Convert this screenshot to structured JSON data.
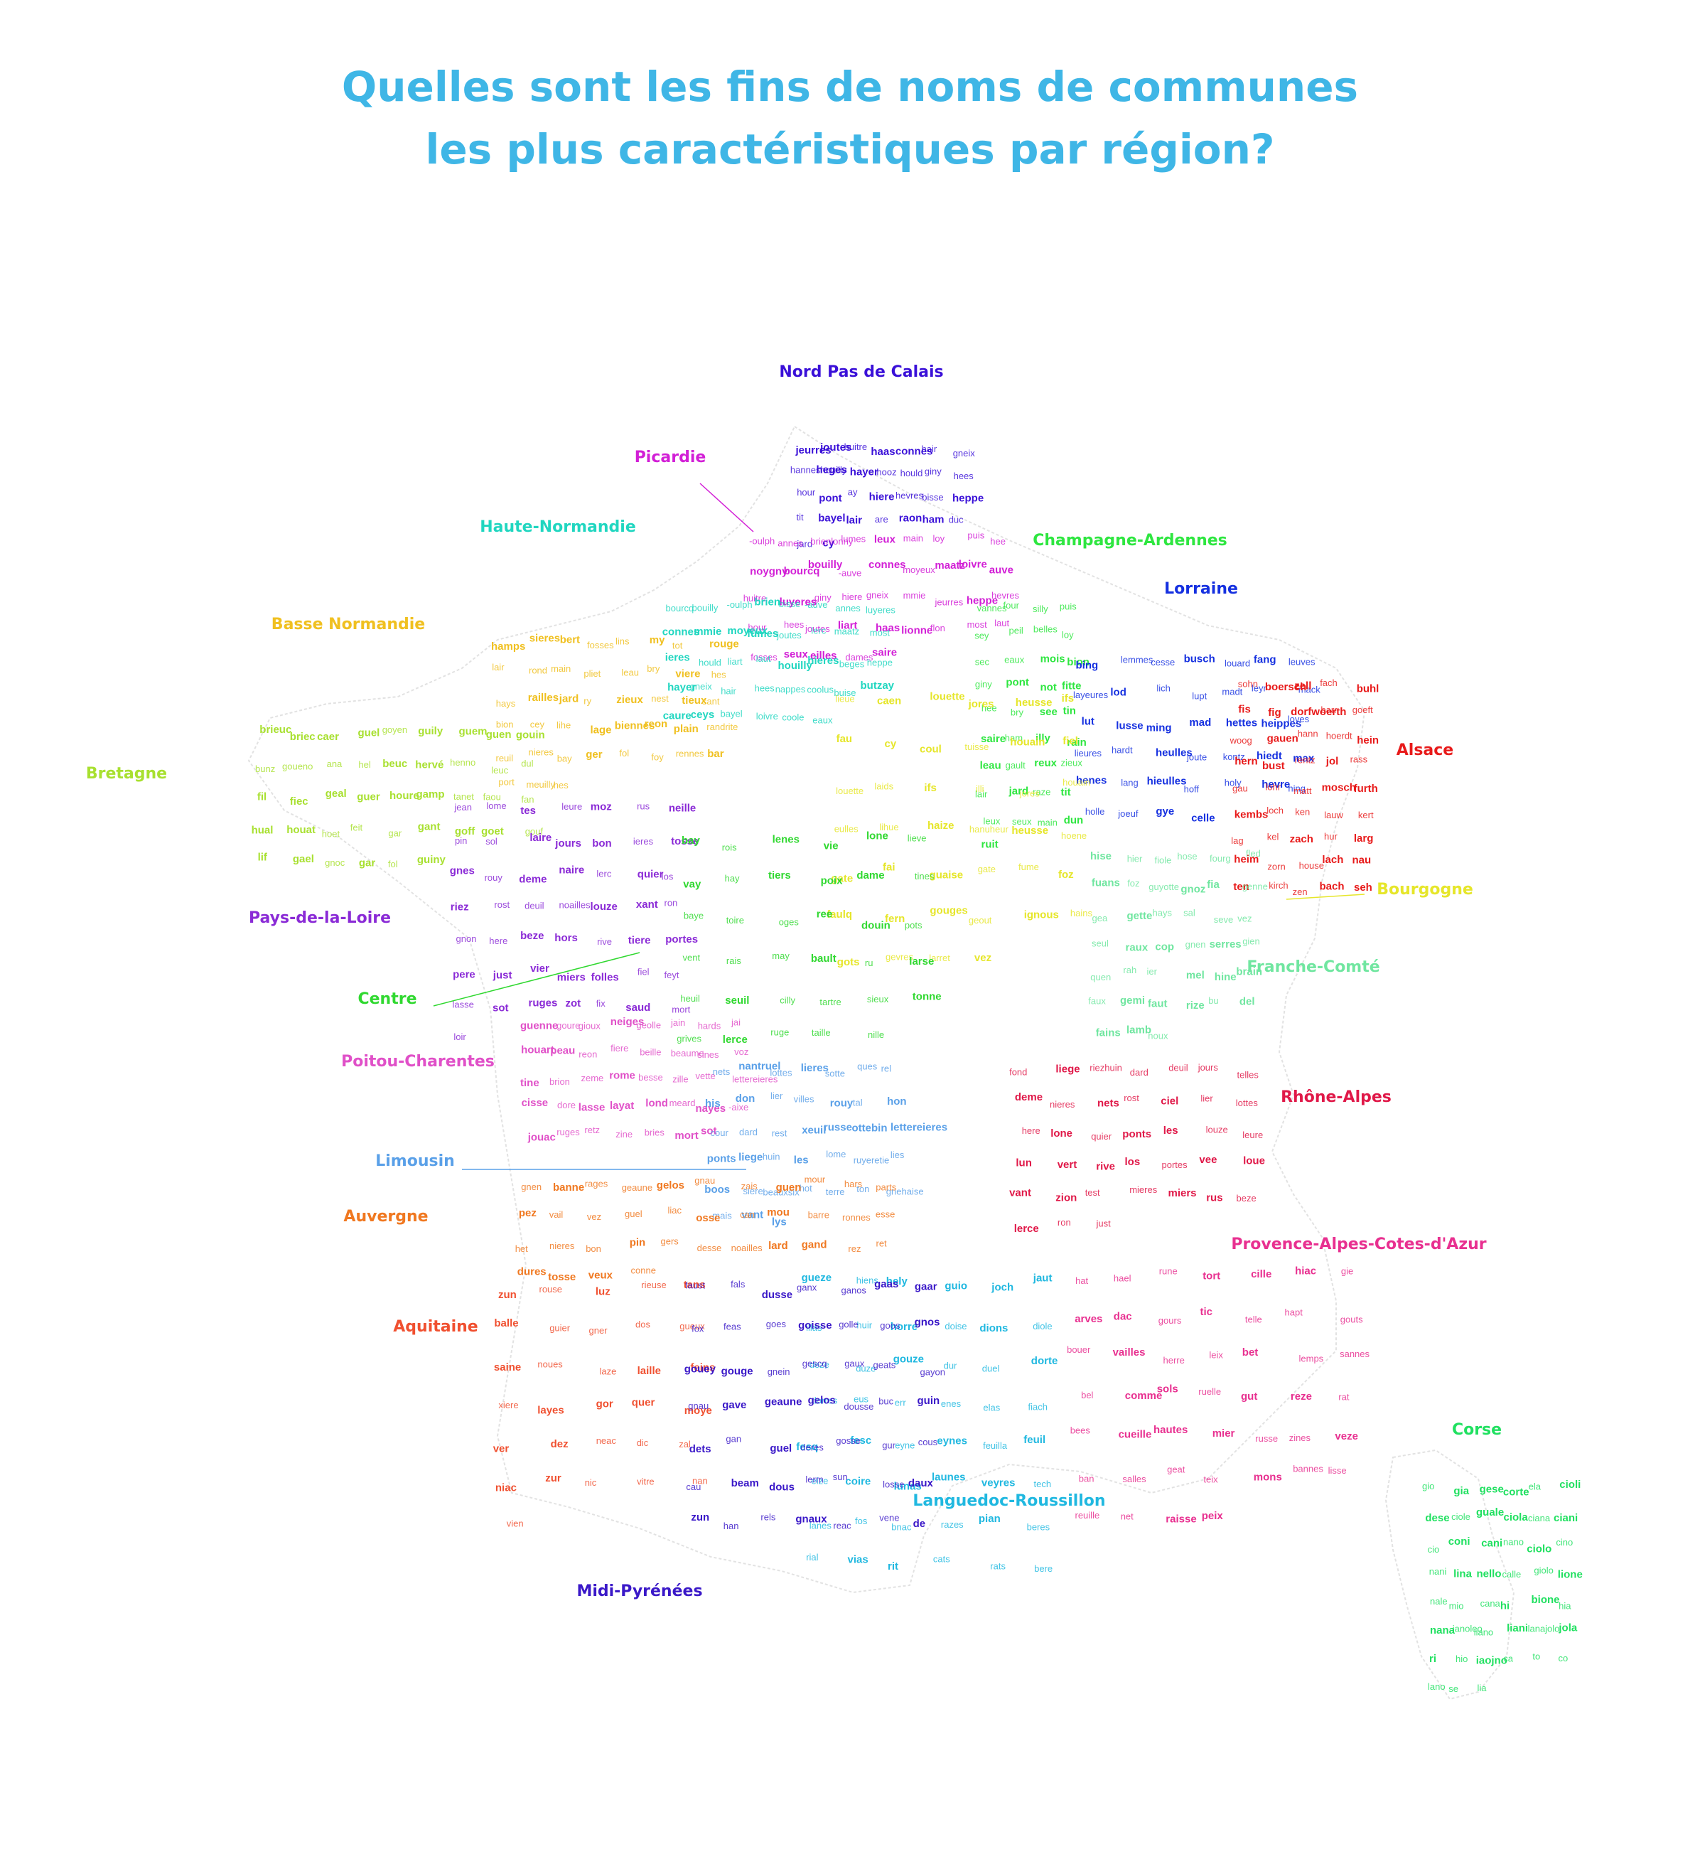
{
  "title": {
    "line1": "Quelles sont les fins de noms de communes",
    "line2": "les plus caractéristiques par région?"
  },
  "colors": {
    "title": "#3fb6e6",
    "nord": "#3a10d8",
    "picardie": "#d21fd6",
    "haute_normandie": "#20d6c0",
    "champagne": "#2ee640",
    "lorraine": "#1530e0",
    "basse_normandie": "#f0c020",
    "bretagne": "#a8e030",
    "alsace": "#e81a1a",
    "bourgogne": "#e6e62a",
    "pays_loire": "#8a2ad6",
    "centre": "#30d830",
    "franche_comte": "#70e6a0",
    "poitou": "#e050c8",
    "rhone_alpes": "#e01848",
    "limousin": "#5aa0e8",
    "auvergne": "#f07820",
    "paca": "#e83090",
    "aquitaine": "#f05030",
    "languedoc": "#20b8e0",
    "midi": "#3a18c8",
    "corse": "#20e060"
  },
  "regions": [
    {
      "key": "nord",
      "name": "Nord Pas de Calais",
      "color": "#3a10d8",
      "words": [
        "jeurres",
        "joutes",
        "huitre",
        "haas",
        "connes",
        "hair",
        "gneix",
        "hanneshouilly",
        "heges",
        "hayer",
        "hooz",
        "hould",
        "giny",
        "hees",
        "hour",
        "pont",
        "ay",
        "hiere",
        "hevres",
        "bisse",
        "heppe",
        "tit",
        "bayel",
        "lair",
        "are",
        "raon",
        "ham",
        "duc",
        "jard",
        "cy"
      ]
    },
    {
      "key": "picardie",
      "name": "Picardie",
      "color": "#d21fd6",
      "words": [
        "-oulph",
        "annes",
        "brienlonny",
        "lumes",
        "leux",
        "main",
        "loy",
        "puis",
        "hee",
        "noygny",
        "bourcq",
        "bouilly",
        "-auve",
        "connes",
        "moyeux",
        "maatz",
        "loivre",
        "auve",
        "huitre",
        "luyeres",
        "giny",
        "hiere",
        "gneix",
        "mmie",
        "jeurres",
        "heppe",
        "hevres",
        "hour",
        "hees",
        "joutes",
        "liart",
        "haas",
        "lionne",
        "flon",
        "most",
        "laut",
        "fosses",
        "seux",
        "eilles",
        "dames",
        "saire"
      ]
    },
    {
      "key": "haute_normandie",
      "name": "Haute-Normandie",
      "color": "#20d6c0",
      "words": [
        "bourcq",
        "bouilly",
        "-oulph",
        "brien",
        "bisse",
        "-auve",
        "annes",
        "luyeres",
        "connes",
        "mmie",
        "moyeux",
        "fumes",
        "joutes",
        "lerc",
        "maatz",
        "most",
        "ieres",
        "hould",
        "liart",
        "laut",
        "houilly",
        "hieres",
        "beges",
        "heppe",
        "hayer",
        "gneix",
        "hair",
        "hees",
        "nappes",
        "coolus",
        "buise",
        "butzay",
        "caure",
        "ceys",
        "bayel",
        "loivre",
        "coole",
        "eaux"
      ]
    },
    {
      "key": "champagne",
      "name": "Champagne-Ardennes",
      "color": "#2ee640",
      "words": [
        "vannes",
        "four",
        "silly",
        "puis",
        "sey",
        "peil",
        "belles",
        "loy",
        "sec",
        "eaux",
        "mois",
        "bion",
        "giny",
        "pont",
        "not",
        "fitte",
        "hee",
        "bry",
        "see",
        "tin",
        "saire",
        "ham",
        "illy",
        "rain",
        "leau",
        "gault",
        "reux",
        "zieux",
        "lair",
        "jard",
        "raze",
        "tit",
        "leux",
        "seux",
        "main",
        "dun",
        "ruit"
      ]
    },
    {
      "key": "lorraine",
      "name": "Lorraine",
      "color": "#1530e0",
      "words": [
        "bing",
        "lemmes",
        "cesse",
        "busch",
        "louard",
        "fang",
        "leuves",
        "layeures",
        "lod",
        "lich",
        "lupt",
        "madt",
        "leyr",
        "mack",
        "lut",
        "lusse",
        "ming",
        "mad",
        "hettes",
        "heippes",
        "loyes",
        "lieures",
        "hardt",
        "heulles",
        "joute",
        "kontz",
        "hiedt",
        "max",
        "henes",
        "lang",
        "hieulles",
        "hoff",
        "holy",
        "hevre",
        "hing",
        "holle",
        "joeuf",
        "gye",
        "celle"
      ]
    },
    {
      "key": "basse_normandie",
      "name": "Basse Normandie",
      "color": "#f0c020",
      "words": [
        "hamps",
        "sieres",
        "bert",
        "fosses",
        "lins",
        "my",
        "tot",
        "rouge",
        "lair",
        "rond",
        "main",
        "pliet",
        "leau",
        "bry",
        "viere",
        "hes",
        "hays",
        "railles",
        "jard",
        "ry",
        "zieux",
        "nest",
        "tieux",
        "sant",
        "bion",
        "cey",
        "lihe",
        "lage",
        "biennes",
        "reon",
        "plain",
        "randrite",
        "reuil",
        "nieres",
        "bay",
        "ger",
        "fol",
        "foy",
        "rennes",
        "bar",
        "port",
        "meuilly",
        "hes"
      ]
    },
    {
      "key": "bretagne",
      "name": "Bretagne",
      "color": "#a8e030",
      "words": [
        "brieuc",
        "briec",
        "caer",
        "guel",
        "goyen",
        "guily",
        "guem",
        "guen",
        "gouin",
        "bunz",
        "goueno",
        "ana",
        "hel",
        "beuc",
        "hervé",
        "henno",
        "leuc",
        "dul",
        "fil",
        "fiec",
        "geal",
        "guer",
        "houre",
        "gamp",
        "tanet",
        "faou",
        "fan",
        "hual",
        "houat",
        "hoet",
        "feit",
        "gar",
        "gant",
        "goff",
        "goet",
        "gouf",
        "lif",
        "gael",
        "gnoc",
        "gar",
        "fol",
        "guiny"
      ]
    },
    {
      "key": "alsace",
      "name": "Alsace",
      "color": "#e81a1a",
      "words": [
        "sohn",
        "boersch",
        "zell",
        "fach",
        "buhl",
        "fis",
        "fig",
        "dorfwoerth",
        "barr",
        "goeft",
        "woog",
        "gauen",
        "hann",
        "hoerdt",
        "hein",
        "hern",
        "bust",
        "rentz",
        "jol",
        "rass",
        "gau",
        "lohr",
        "matt",
        "mosch",
        "furth",
        "kembs",
        "loch",
        "ken",
        "lauw",
        "kert",
        "lag",
        "kel",
        "zach",
        "hur",
        "larg",
        "heim",
        "zorn",
        "house",
        "lach",
        "nau",
        "ten",
        "kirch",
        "zen",
        "bach",
        "seh"
      ]
    },
    {
      "key": "bourgogne",
      "name": "Bourgogne",
      "color": "#e6e62a",
      "words": [
        "lieue",
        "caen",
        "louette",
        "jores",
        "heusse",
        "ifs",
        "fau",
        "cy",
        "coul",
        "tuisse",
        "houain",
        "fiel",
        "louette",
        "laids",
        "ifs",
        "illi",
        "jores",
        "houain",
        "eulles",
        "lihue",
        "haize",
        "hanuheur",
        "heusse",
        "hoene",
        "gate",
        "fai",
        "guaise",
        "gate",
        "fume",
        "foz",
        "faulq",
        "fern",
        "gouges",
        "geout",
        "ignous",
        "hains",
        "gots",
        "gevres",
        "larret",
        "vez"
      ]
    },
    {
      "key": "pays_loire",
      "name": "Pays-de-la-Loire",
      "color": "#8a2ad6",
      "words": [
        "jean",
        "lome",
        "tes",
        "leure",
        "moz",
        "rus",
        "neille",
        "pin",
        "sol",
        "laire",
        "jours",
        "bon",
        "ieres",
        "tosse",
        "gnes",
        "rouy",
        "deme",
        "naire",
        "lerc",
        "quier",
        "los",
        "riez",
        "rost",
        "deuil",
        "noailles",
        "louze",
        "xant",
        "ron",
        "gnon",
        "here",
        "beze",
        "hors",
        "rive",
        "tiere",
        "portes",
        "pere",
        "just",
        "vier",
        "miers",
        "folles",
        "fiel",
        "feyt",
        "lasse",
        "sot",
        "ruges",
        "zot",
        "fix",
        "saud",
        "mort",
        "loir"
      ]
    },
    {
      "key": "centre",
      "name": "Centre",
      "color": "#30d830",
      "words": [
        "bay",
        "rois",
        "lenes",
        "vie",
        "lone",
        "lieve",
        "vay",
        "hay",
        "tiers",
        "poix",
        "dame",
        "tines",
        "baye",
        "toire",
        "oges",
        "ree",
        "douin",
        "pots",
        "vent",
        "rais",
        "may",
        "bault",
        "ru",
        "larse",
        "heuil",
        "seuil",
        "cilly",
        "tartre",
        "sieux",
        "tonne",
        "grives",
        "lerce",
        "ruge",
        "taille",
        "nille"
      ]
    },
    {
      "key": "franche_comte",
      "name": "Franche-Comté",
      "color": "#70e6a0",
      "words": [
        "hise",
        "hier",
        "fiole",
        "hose",
        "fourg",
        "fled",
        "fuans",
        "foz",
        "guyotte",
        "gnoz",
        "fia",
        "genne",
        "gea",
        "gette",
        "hays",
        "sal",
        "seve",
        "vez",
        "seul",
        "raux",
        "cop",
        "gnen",
        "serres",
        "gien",
        "quen",
        "rah",
        "ier",
        "mel",
        "hine",
        "brain",
        "faux",
        "gemi",
        "faut",
        "rize",
        "bu",
        "del",
        "fains",
        "lamb",
        "noux"
      ]
    },
    {
      "key": "poitou",
      "name": "Poitou-Charentes",
      "color": "#e050c8",
      "words": [
        "guenne",
        "goure",
        "gioux",
        "neiges",
        "geolle",
        "jain",
        "hards",
        "jai",
        "houart",
        "peau",
        "reon",
        "fiere",
        "beille",
        "beaume",
        "sines",
        "voz",
        "tine",
        "brion",
        "zeme",
        "rome",
        "besse",
        "zille",
        "vette",
        "lettereieres",
        "cisse",
        "dore",
        "lasse",
        "layat",
        "lond",
        "meard",
        "nayes",
        "-aixe",
        "jouac",
        "ruges",
        "retz",
        "zine",
        "bries",
        "mort",
        "sot"
      ]
    },
    {
      "key": "rhone_alpes",
      "name": "Rhône-Alpes",
      "color": "#e01848",
      "words": [
        "fond",
        "liege",
        "riezhuin",
        "dard",
        "deuil",
        "jours",
        "telles",
        "deme",
        "nieres",
        "nets",
        "rost",
        "ciel",
        "lier",
        "lottes",
        "here",
        "lone",
        "quier",
        "ponts",
        "les",
        "louze",
        "leure",
        "lun",
        "vert",
        "rive",
        "los",
        "portes",
        "vee",
        "loue",
        "vant",
        "zion",
        "test",
        "mieres",
        "miers",
        "rus",
        "beze",
        "lerce",
        "ron",
        "just"
      ]
    },
    {
      "key": "limousin",
      "name": "Limousin",
      "color": "#5aa0e8",
      "words": [
        "nets",
        "nantruel",
        "lottes",
        "lieres",
        "sotte",
        "ques",
        "rel",
        "his",
        "don",
        "lier",
        "villes",
        "rouy",
        "tal",
        "hon",
        "cour",
        "dard",
        "rest",
        "xeuil",
        "russe",
        "ottebin",
        "lettereieres",
        "ponts",
        "liege",
        "huin",
        "les",
        "lome",
        "ruyeretie",
        "lies",
        "boos",
        "siere",
        "beauxsix",
        "hot",
        "terre",
        "ton",
        "gnehaise",
        "mais",
        "vant",
        "lys"
      ]
    },
    {
      "key": "auvergne",
      "name": "Auvergne",
      "color": "#f07820",
      "words": [
        "gnen",
        "banne",
        "rages",
        "geaune",
        "gelos",
        "gnau",
        "zais",
        "guen",
        "mour",
        "hars",
        "parts",
        "pez",
        "vail",
        "vez",
        "guel",
        "liac",
        "osse",
        "can",
        "mou",
        "barre",
        "ronnes",
        "esse",
        "het",
        "nieres",
        "bon",
        "pin",
        "gers",
        "desse",
        "noailles",
        "lard",
        "gand",
        "rez",
        "ret",
        "dures",
        "tosse",
        "veux",
        "conne"
      ]
    },
    {
      "key": "paca",
      "name": "Provence-Alpes-Cotes-d'Azur",
      "color": "#e83090",
      "words": [
        "hat",
        "hael",
        "rune",
        "tort",
        "cille",
        "hiac",
        "gie",
        "arves",
        "dac",
        "gours",
        "tic",
        "telle",
        "hapt",
        "gouts",
        "bouer",
        "vailles",
        "herre",
        "leix",
        "bet",
        "lemps",
        "sannes",
        "bel",
        "comme",
        "sols",
        "ruelle",
        "gut",
        "reze",
        "rat",
        "bees",
        "cueille",
        "hautes",
        "mier",
        "russe",
        "zines",
        "veze",
        "ban",
        "salles",
        "geat",
        "teix",
        "mons",
        "bannes",
        "lisse",
        "reuille",
        "net",
        "raisse",
        "peix"
      ]
    },
    {
      "key": "aquitaine",
      "name": "Aquitaine",
      "color": "#f05030",
      "words": [
        "zun",
        "rouse",
        "luz",
        "rieuse",
        "tans",
        "balle",
        "guier",
        "gner",
        "dos",
        "gueux",
        "saine",
        "noues",
        "laze",
        "laille",
        "feins",
        "xiere",
        "layes",
        "gor",
        "quer",
        "moye",
        "ver",
        "dez",
        "neac",
        "dic",
        "zal",
        "niac",
        "zur",
        "nic",
        "vitre",
        "nan",
        "vien"
      ]
    },
    {
      "key": "languedoc",
      "name": "Languedoc-Roussillon",
      "color": "#20b8e0",
      "words": [
        "gueze",
        "hiens",
        "hely",
        "guio",
        "joch",
        "jaut",
        "illas",
        "huir",
        "horre",
        "doise",
        "dions",
        "diole",
        "deze",
        "duze",
        "gouze",
        "dur",
        "duel",
        "dorte",
        "dorres",
        "eus",
        "err",
        "enes",
        "elas",
        "fiach",
        "fesq",
        "fesc",
        "eyne",
        "eynes",
        "feuilla",
        "feuil",
        "eize",
        "coire",
        "lunas",
        "launes",
        "veyres",
        "tech",
        "lanes",
        "fos",
        "bnac",
        "razes",
        "pian",
        "beres",
        "rial",
        "vias",
        "rit",
        "cats",
        "rats",
        "bere"
      ]
    },
    {
      "key": "midi",
      "name": "Midi-Pyrénées",
      "color": "#3a18c8",
      "words": [
        "faust",
        "fals",
        "dusse",
        "ganx",
        "ganos",
        "gaas",
        "gaar",
        "fox",
        "feas",
        "goes",
        "goisse",
        "golle",
        "goos",
        "gnos",
        "gouey",
        "gouge",
        "gnein",
        "gescq",
        "gaux",
        "geats",
        "gayon",
        "gnau",
        "gave",
        "geaune",
        "gelos",
        "dousse",
        "buc",
        "guin",
        "dets",
        "gan",
        "guel",
        "deres",
        "gosse",
        "gur",
        "cous",
        "cau",
        "beam",
        "dous",
        "lerm",
        "sun",
        "losse",
        "daux",
        "zun",
        "han",
        "rels",
        "gnaux",
        "reac",
        "vene",
        "de"
      ]
    },
    {
      "key": "corse",
      "name": "Corse",
      "color": "#20e060",
      "words": [
        "gio",
        "gia",
        "gese",
        "corte",
        "ela",
        "cioli",
        "dese",
        "ciole",
        "guale",
        "ciola",
        "ciana",
        "ciani",
        "cio",
        "coni",
        "cani",
        "nano",
        "ciolo",
        "cino",
        "nani",
        "lina",
        "nello",
        "calle",
        "giolo",
        "lione",
        "nale",
        "mio",
        "cana",
        "hi",
        "bione",
        "hia",
        "nana",
        "ianoleo",
        "liano",
        "liani",
        "lanajolo",
        "jola",
        "ri",
        "hio",
        "iaojno",
        "ca",
        "to",
        "co",
        "lano",
        "se",
        "lia"
      ]
    }
  ]
}
